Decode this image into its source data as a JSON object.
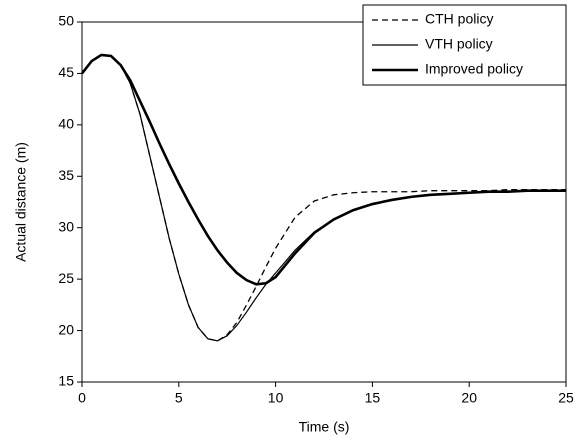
{
  "chart_data": {
    "type": "line",
    "x_label": "Time (s)",
    "y_label": "Actual distance (m)",
    "xlim": [
      0,
      25
    ],
    "xticks": [
      0,
      5,
      10,
      15,
      20,
      25
    ],
    "ylim": [
      15,
      50
    ],
    "yticks": [
      15,
      20,
      25,
      30,
      35,
      40,
      45,
      50
    ],
    "legend": "upper right",
    "x": [
      0,
      0.5,
      1,
      1.5,
      2,
      2.5,
      3,
      3.5,
      4,
      4.5,
      5,
      5.5,
      6,
      6.5,
      7,
      7.5,
      8,
      8.5,
      9,
      9.5,
      10,
      11,
      12,
      13,
      14,
      15,
      16,
      17,
      18,
      19,
      20,
      21,
      22,
      23,
      24,
      25
    ],
    "series": [
      {
        "name": "CTH policy",
        "color": "#000000",
        "dash": "6,4",
        "width": 1.3,
        "values": [
          45,
          46.2,
          46.8,
          46.7,
          45.8,
          44,
          41,
          37,
          33,
          29,
          25.5,
          22.5,
          20.3,
          19.2,
          19,
          19.6,
          20.8,
          22.5,
          24.3,
          26.2,
          28,
          31,
          32.6,
          33.2,
          33.4,
          33.5,
          33.5,
          33.5,
          33.6,
          33.6,
          33.6,
          33.6,
          33.7,
          33.7,
          33.7,
          33.7
        ]
      },
      {
        "name": "VTH policy",
        "color": "#000000",
        "dash": "none",
        "width": 1.2,
        "values": [
          45,
          46.2,
          46.8,
          46.7,
          45.8,
          44,
          41,
          37,
          33,
          29,
          25.5,
          22.5,
          20.3,
          19.2,
          19,
          19.5,
          20.5,
          21.8,
          23.2,
          24.5,
          25.6,
          27.8,
          29.6,
          30.8,
          31.7,
          32.3,
          32.7,
          33,
          33.2,
          33.3,
          33.4,
          33.5,
          33.5,
          33.6,
          33.6,
          33.6
        ]
      },
      {
        "name": "Improved policy",
        "color": "#000000",
        "dash": "none",
        "width": 2.6,
        "values": [
          45,
          46.2,
          46.8,
          46.7,
          45.8,
          44.3,
          42.3,
          40.3,
          38.2,
          36.2,
          34.3,
          32.5,
          30.8,
          29.2,
          27.8,
          26.6,
          25.6,
          24.9,
          24.5,
          24.6,
          25.2,
          27.5,
          29.5,
          30.8,
          31.7,
          32.3,
          32.7,
          33,
          33.2,
          33.3,
          33.4,
          33.5,
          33.5,
          33.6,
          33.6,
          33.6
        ]
      }
    ]
  }
}
